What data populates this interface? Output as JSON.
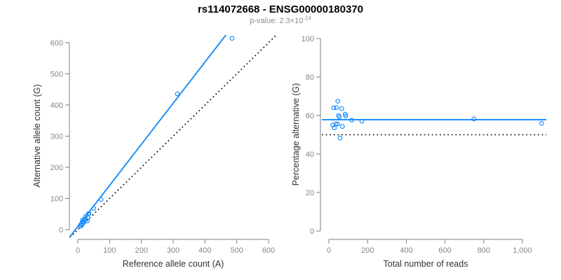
{
  "header": {
    "title": "rs114072668 - ENSG00000180370",
    "subtitle_prefix": "p-value: ",
    "subtitle_base": "2.3×10",
    "subtitle_exponent": "-14"
  },
  "colors": {
    "accent_blue": "#1E90FF",
    "identity_line": "#000000",
    "axis_line": "#7f7f7f",
    "tick_text": "#858585",
    "axis_label": "#333333",
    "subtitle_text": "#8c8c8c"
  },
  "chart_data": [
    {
      "type": "scatter",
      "panel": "left",
      "xlabel": "Reference allele count (A)",
      "ylabel": "Alternative allele count (G)",
      "xlim": [
        0,
        600
      ],
      "ylim": [
        0,
        600
      ],
      "xticks": [
        0,
        100,
        200,
        300,
        400,
        500,
        600
      ],
      "yticks": [
        0,
        100,
        200,
        300,
        400,
        500,
        600
      ],
      "grid": false,
      "points": [
        {
          "x": 9,
          "y": 11
        },
        {
          "x": 9,
          "y": 16
        },
        {
          "x": 13,
          "y": 15
        },
        {
          "x": 14,
          "y": 25
        },
        {
          "x": 15,
          "y": 31
        },
        {
          "x": 16,
          "y": 20
        },
        {
          "x": 20,
          "y": 25
        },
        {
          "x": 20,
          "y": 30
        },
        {
          "x": 22,
          "y": 32
        },
        {
          "x": 24,
          "y": 42
        },
        {
          "x": 30,
          "y": 28
        },
        {
          "x": 32,
          "y": 38
        },
        {
          "x": 33,
          "y": 51
        },
        {
          "x": 35,
          "y": 52
        },
        {
          "x": 50,
          "y": 68
        },
        {
          "x": 73,
          "y": 97
        },
        {
          "x": 313,
          "y": 436
        },
        {
          "x": 485,
          "y": 614
        }
      ],
      "lines": [
        {
          "name": "identity-line",
          "style": "dotted",
          "color": "#000000",
          "slope": 1,
          "intercept": 0
        },
        {
          "name": "fit-line",
          "style": "solid",
          "color": "#1E90FF",
          "slope": 1.32,
          "intercept": 10
        }
      ]
    },
    {
      "type": "scatter",
      "panel": "right",
      "xlabel": "Total number of reads",
      "ylabel": "Percentage alternative (G)",
      "xlim": [
        0,
        1000
      ],
      "ylim": [
        0,
        100
      ],
      "xticks": [
        0,
        200,
        400,
        600,
        800,
        1000
      ],
      "xtick_labels": [
        "0",
        "200",
        "400",
        "600",
        "800",
        "1,000"
      ],
      "yticks": [
        0,
        20,
        40,
        60,
        80,
        100
      ],
      "grid": false,
      "points": [
        {
          "x": 20,
          "y": 55.0
        },
        {
          "x": 25,
          "y": 64.0
        },
        {
          "x": 28,
          "y": 53.6
        },
        {
          "x": 36,
          "y": 55.6
        },
        {
          "x": 39,
          "y": 64.1
        },
        {
          "x": 45,
          "y": 55.6
        },
        {
          "x": 46,
          "y": 67.4
        },
        {
          "x": 50,
          "y": 60.0
        },
        {
          "x": 54,
          "y": 59.3
        },
        {
          "x": 58,
          "y": 48.3
        },
        {
          "x": 66,
          "y": 63.6
        },
        {
          "x": 70,
          "y": 54.3
        },
        {
          "x": 84,
          "y": 60.7
        },
        {
          "x": 87,
          "y": 59.8
        },
        {
          "x": 118,
          "y": 57.6
        },
        {
          "x": 170,
          "y": 57.1
        },
        {
          "x": 749,
          "y": 58.2
        },
        {
          "x": 1099,
          "y": 55.9
        }
      ],
      "lines": [
        {
          "name": "threshold-line",
          "style": "dotted",
          "color": "#000000",
          "y": 50
        },
        {
          "name": "mean-line",
          "style": "solid",
          "color": "#1E90FF",
          "y": 57.8
        }
      ]
    }
  ]
}
